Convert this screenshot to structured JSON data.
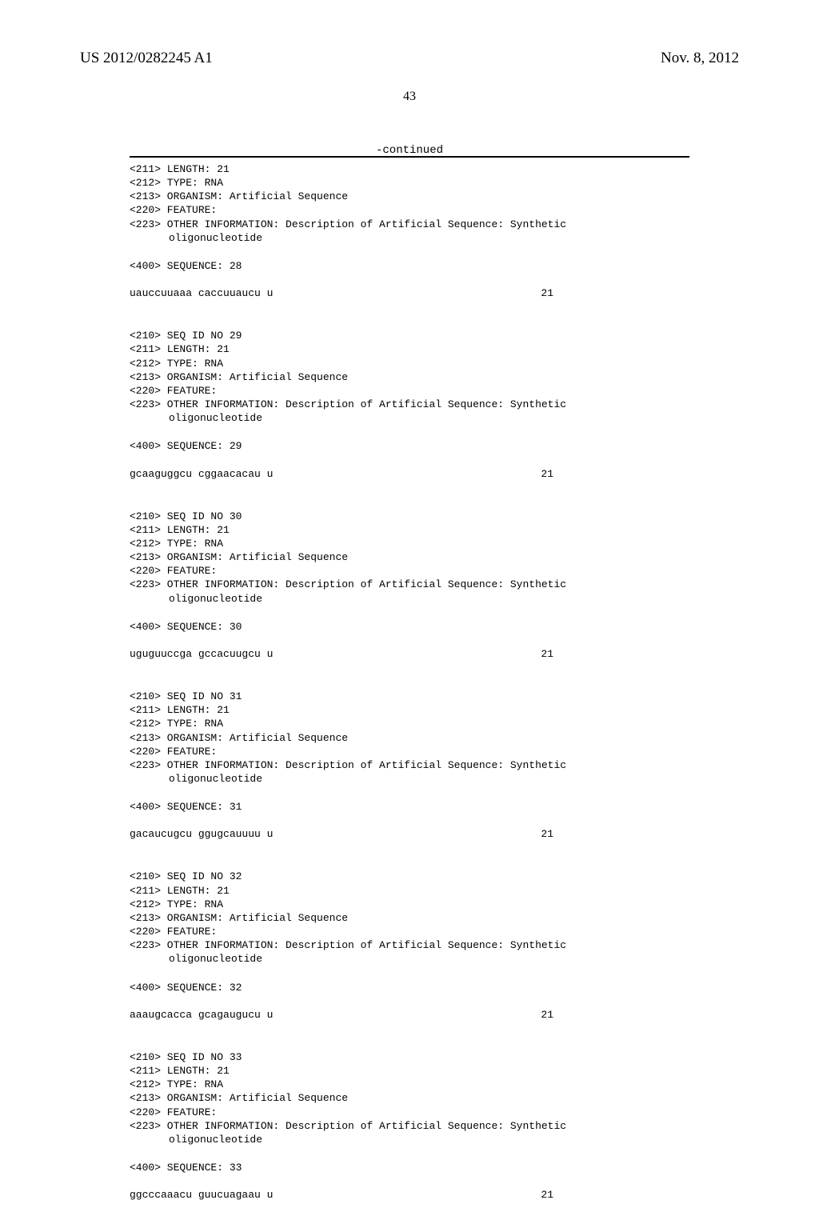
{
  "header": {
    "pub_number": "US 2012/0282245 A1",
    "pub_date": "Nov. 8, 2012",
    "page_number": "43",
    "continued": "-continued"
  },
  "initial_block": {
    "lines": [
      "<211> LENGTH: 21",
      "<212> TYPE: RNA",
      "<213> ORGANISM: Artificial Sequence",
      "<220> FEATURE:",
      "<223> OTHER INFORMATION: Description of Artificial Sequence: Synthetic"
    ],
    "indent_line": "oligonucleotide",
    "seq_label": "<400> SEQUENCE: 28",
    "sequence": "uauccuuaaa caccuuaucu u",
    "seq_num": "21"
  },
  "blocks": [
    {
      "id": "29",
      "lines": [
        "<210> SEQ ID NO 29",
        "<211> LENGTH: 21",
        "<212> TYPE: RNA",
        "<213> ORGANISM: Artificial Sequence",
        "<220> FEATURE:",
        "<223> OTHER INFORMATION: Description of Artificial Sequence: Synthetic"
      ],
      "indent_line": "oligonucleotide",
      "seq_label": "<400> SEQUENCE: 29",
      "sequence": "gcaaguggcu cggaacacau u",
      "seq_num": "21"
    },
    {
      "id": "30",
      "lines": [
        "<210> SEQ ID NO 30",
        "<211> LENGTH: 21",
        "<212> TYPE: RNA",
        "<213> ORGANISM: Artificial Sequence",
        "<220> FEATURE:",
        "<223> OTHER INFORMATION: Description of Artificial Sequence: Synthetic"
      ],
      "indent_line": "oligonucleotide",
      "seq_label": "<400> SEQUENCE: 30",
      "sequence": "uguguuccga gccacuugcu u",
      "seq_num": "21"
    },
    {
      "id": "31",
      "lines": [
        "<210> SEQ ID NO 31",
        "<211> LENGTH: 21",
        "<212> TYPE: RNA",
        "<213> ORGANISM: Artificial Sequence",
        "<220> FEATURE:",
        "<223> OTHER INFORMATION: Description of Artificial Sequence: Synthetic"
      ],
      "indent_line": "oligonucleotide",
      "seq_label": "<400> SEQUENCE: 31",
      "sequence": "gacaucugcu ggugcauuuu u",
      "seq_num": "21"
    },
    {
      "id": "32",
      "lines": [
        "<210> SEQ ID NO 32",
        "<211> LENGTH: 21",
        "<212> TYPE: RNA",
        "<213> ORGANISM: Artificial Sequence",
        "<220> FEATURE:",
        "<223> OTHER INFORMATION: Description of Artificial Sequence: Synthetic"
      ],
      "indent_line": "oligonucleotide",
      "seq_label": "<400> SEQUENCE: 32",
      "sequence": "aaaugcacca gcagaugucu u",
      "seq_num": "21"
    },
    {
      "id": "33",
      "lines": [
        "<210> SEQ ID NO 33",
        "<211> LENGTH: 21",
        "<212> TYPE: RNA",
        "<213> ORGANISM: Artificial Sequence",
        "<220> FEATURE:",
        "<223> OTHER INFORMATION: Description of Artificial Sequence: Synthetic"
      ],
      "indent_line": "oligonucleotide",
      "seq_label": "<400> SEQUENCE: 33",
      "sequence": "ggcccaaacu guucuagaau u",
      "seq_num": "21"
    }
  ]
}
